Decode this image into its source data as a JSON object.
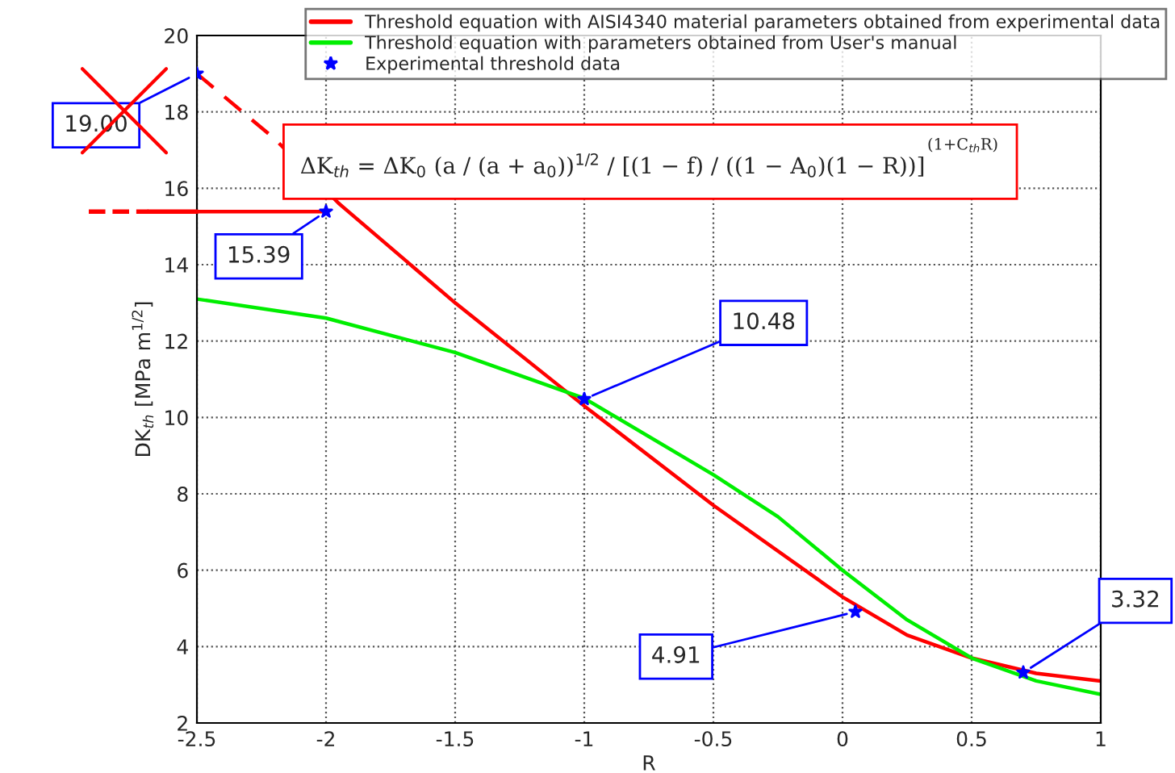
{
  "chart_data": {
    "type": "line",
    "xlabel": "R",
    "ylabel": "DK$_{th}$ [MPa m$^{1/2}$]",
    "xlim": [
      -2.5,
      1
    ],
    "ylim": [
      2,
      20
    ],
    "xticks": [
      {
        "value": -2.5,
        "label": "-2.5"
      },
      {
        "value": -2,
        "label": "-2"
      },
      {
        "value": -1.5,
        "label": "-1.5"
      },
      {
        "value": -1,
        "label": "-1"
      },
      {
        "value": -0.5,
        "label": "-0.5"
      },
      0,
      0.5,
      1
    ],
    "yticks": [
      2,
      4,
      6,
      8,
      10,
      12,
      14,
      16,
      18,
      20
    ],
    "grid": true,
    "legend": "top right",
    "series": [
      {
        "name": "Threshold equation with AISI4340 material parameters obtained from experimental data",
        "color": "#ff0000",
        "line_style": "solid",
        "marker": "none",
        "x": [
          -1.95,
          -1.5,
          -1,
          -0.5,
          0,
          0.25,
          0.5,
          0.75,
          1
        ],
        "values": [
          15.6,
          13.0,
          10.3,
          7.7,
          5.3,
          4.3,
          3.7,
          3.3,
          3.1
        ]
      },
      {
        "name": "Threshold equation with parameters obtained from User's manual",
        "color": "#00ee00",
        "line_style": "solid",
        "marker": "none",
        "x": [
          -2.5,
          -2,
          -1.5,
          -1,
          -0.5,
          -0.25,
          0,
          0.25,
          0.5,
          0.75,
          1
        ],
        "values": [
          13.1,
          12.6,
          11.7,
          10.5,
          8.5,
          7.4,
          6.0,
          4.7,
          3.7,
          3.1,
          2.75
        ]
      },
      {
        "name": "Experimental threshold data",
        "color": "#0000ff",
        "type": "scatter",
        "marker": "star",
        "x": [
          -2.5,
          -2,
          -1,
          0.05,
          0.7
        ],
        "values": [
          19.0,
          15.39,
          10.48,
          4.91,
          3.32
        ]
      },
      {
        "color": "#ff0000",
        "line_style": "dashed",
        "marker": "none",
        "x": [
          -2.5,
          -2.2,
          -1.95
        ],
        "values": [
          19.0,
          17.3,
          15.6
        ]
      },
      {
        "color": "#ff0000",
        "line_style": "solid",
        "marker": "none",
        "x": [
          -2.5,
          -2
        ],
        "values": [
          15.39,
          15.39
        ]
      }
    ],
    "annotations": [
      {
        "text": "19.00",
        "x": -2.5,
        "y": 19.0
      },
      {
        "text": "15.39",
        "x": -2,
        "y": 15.39
      },
      {
        "text": "10.48",
        "x": -1,
        "y": 10.48
      },
      {
        "text": "4.91",
        "x": 0.05,
        "y": 4.91
      },
      {
        "text": "3.32",
        "x": 0.7,
        "y": 3.32
      },
      "ΔK$_{th}$ = ΔK$_{0}$ (a / (a + a$_{0}$))$^{1/2}$ / [(1 − f) / ((1 − A$_{0}$)(1 − R))]",
      "(1+C$_{th}$R)"
    ]
  }
}
